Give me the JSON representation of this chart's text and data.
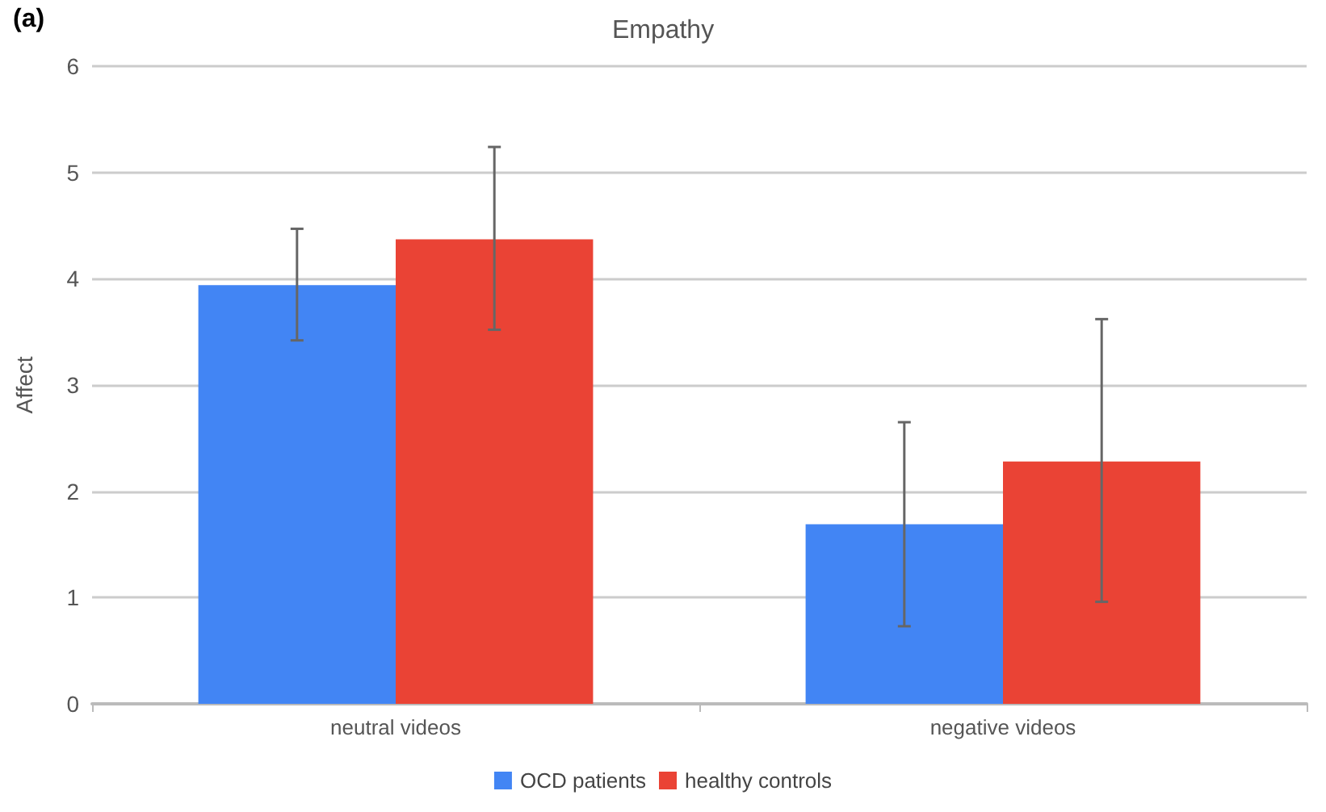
{
  "chart_data": {
    "type": "bar",
    "title": "Empathy",
    "ylabel": "Affect",
    "annotations": [
      "(a)"
    ],
    "categories": [
      "neutral videos",
      "negative videos"
    ],
    "series": [
      {
        "name": "OCD patients",
        "color": "#4285f4",
        "values": [
          3.94,
          1.69
        ],
        "errors": [
          [
            3.42,
            4.47
          ],
          [
            0.73,
            2.65
          ]
        ]
      },
      {
        "name": "healthy controls",
        "color": "#ea4335",
        "values": [
          4.37,
          2.28
        ],
        "errors": [
          [
            3.52,
            5.24
          ],
          [
            0.96,
            3.62
          ]
        ]
      }
    ],
    "ylim": [
      0,
      6
    ],
    "yticks": [
      0,
      1,
      2,
      3,
      4,
      5,
      6
    ],
    "grid": "y",
    "legend": "bottom"
  }
}
